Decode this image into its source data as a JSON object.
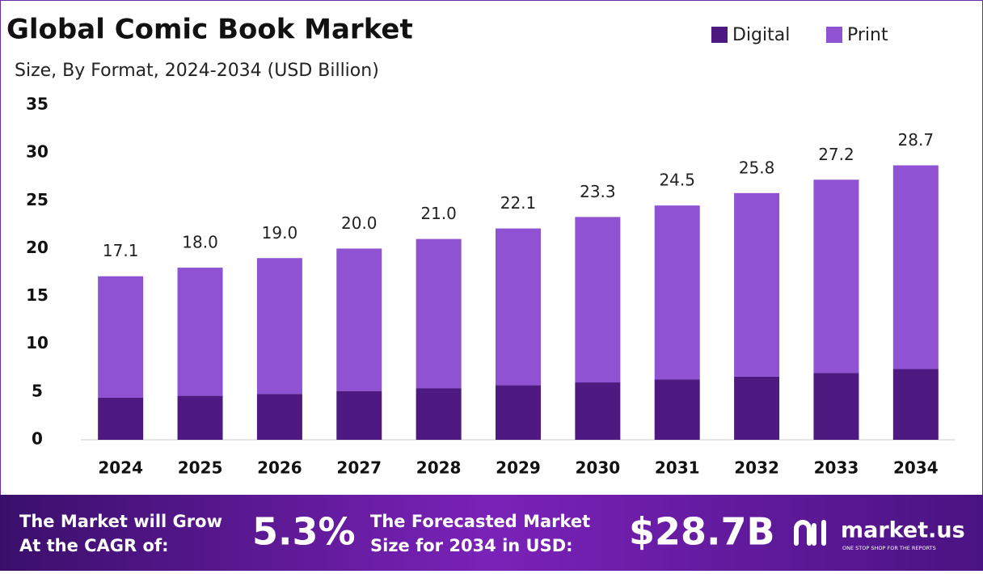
{
  "chart_data": {
    "type": "stacked_bar",
    "title": "Global Comic Book Market",
    "subtitle": "Size, By Format, 2024-2034 (USD Billion)",
    "categories": [
      "2024",
      "2025",
      "2026",
      "2027",
      "2028",
      "2029",
      "2030",
      "2031",
      "2032",
      "2033",
      "2034"
    ],
    "series": [
      {
        "name": "Digital",
        "color": "#4e1a82",
        "values": [
          4.4,
          4.6,
          4.8,
          5.1,
          5.4,
          5.7,
          6.0,
          6.3,
          6.6,
          7.0,
          7.4
        ]
      },
      {
        "name": "Print",
        "color": "#8e52d2",
        "values": [
          12.7,
          13.4,
          14.2,
          14.9,
          15.6,
          16.4,
          17.3,
          18.2,
          19.2,
          20.2,
          21.3
        ]
      }
    ],
    "totals": [
      17.1,
      18.0,
      19.0,
      20.0,
      21.0,
      22.1,
      23.3,
      24.5,
      25.8,
      27.2,
      28.7
    ],
    "total_labels": [
      "17.1",
      "18.0",
      "19.0",
      "20.0",
      "21.0",
      "22.1",
      "23.3",
      "24.5",
      "25.8",
      "27.2",
      "28.7"
    ],
    "ylim": [
      0,
      35
    ],
    "yticks": [
      0,
      5,
      10,
      15,
      20,
      25,
      30,
      35
    ],
    "grid": false,
    "legend": "top-right"
  },
  "banner": {
    "cagr_label": [
      "The Market will Grow",
      "At the CAGR of:"
    ],
    "cagr": "5.3%",
    "forecast_label": [
      "The Forecasted Market",
      "Size for 2034 in USD:"
    ],
    "forecast": "$28.7B",
    "brand": "market.us",
    "tagline": "ONE STOP SHOP FOR THE REPORTS"
  }
}
